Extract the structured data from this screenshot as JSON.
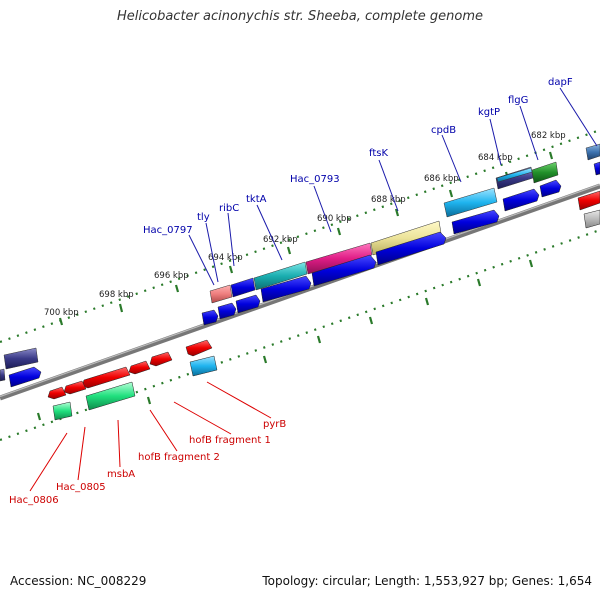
{
  "title": "Helicobacter acinonychis str. Sheeba, complete genome",
  "footer": {
    "accession": "Accession: NC_008229",
    "stats": "Topology: circular; Length: 1,553,927 bp; Genes: 1,654"
  },
  "scale": [
    {
      "label": "700 kbp"
    },
    {
      "label": "698 kbp"
    },
    {
      "label": "696 kbp"
    },
    {
      "label": "694 kbp"
    },
    {
      "label": "692 kbp"
    },
    {
      "label": "690 kbp"
    },
    {
      "label": "688 kbp"
    },
    {
      "label": "686 kbp"
    },
    {
      "label": "684 kbp"
    },
    {
      "label": "682 kbp"
    }
  ],
  "labels_forward": [
    {
      "name": "Hac_0797"
    },
    {
      "name": "tly"
    },
    {
      "name": "ribC"
    },
    {
      "name": "tktA"
    },
    {
      "name": "Hac_0793"
    },
    {
      "name": "ftsK"
    },
    {
      "name": "cpdB"
    },
    {
      "name": "kgtP"
    },
    {
      "name": "flgG"
    },
    {
      "name": "dapF"
    }
  ],
  "labels_reverse": [
    {
      "name": "pyrB"
    },
    {
      "name": "hofB fragment 1"
    },
    {
      "name": "hofB fragment 2"
    },
    {
      "name": "msbA"
    },
    {
      "name": "Hac_0805"
    },
    {
      "name": "Hac_0806"
    }
  ],
  "colors": {
    "forward_label": "#0000aa",
    "reverse_label": "#cc0000",
    "tick": "#2a7a2a",
    "backbone": "#888888",
    "gene_blue": "#0000dd",
    "gene_red": "#ee0000"
  }
}
